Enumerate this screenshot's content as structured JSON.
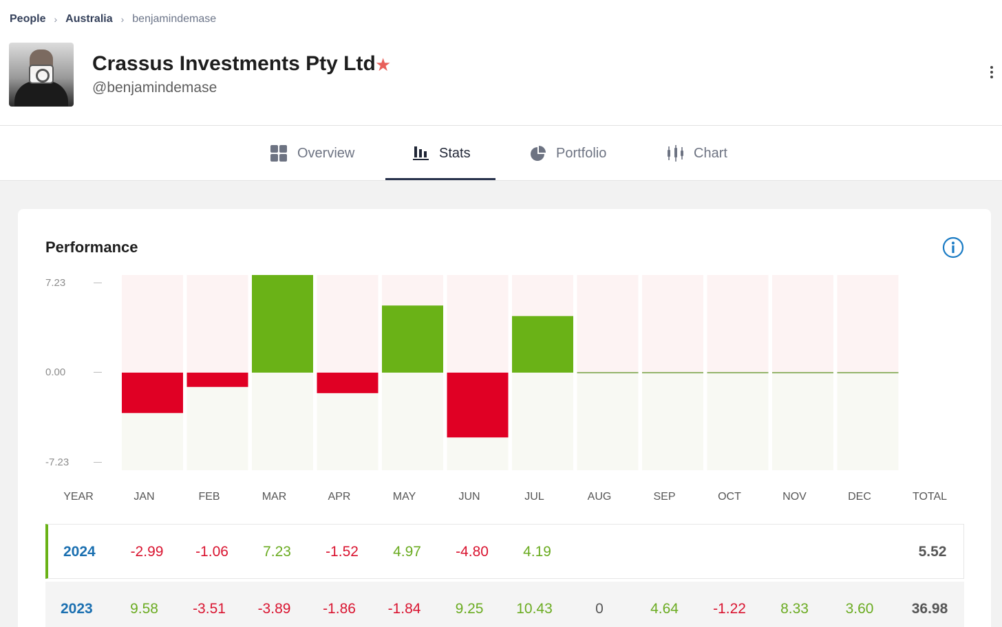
{
  "breadcrumb": [
    "People",
    "Australia",
    "benjamindemase"
  ],
  "profile": {
    "name": "Crassus Investments Pty Ltd",
    "handle": "@benjamindemase"
  },
  "tabs": [
    {
      "label": "Overview",
      "icon": "grid-icon"
    },
    {
      "label": "Stats",
      "icon": "bar-chart-icon"
    },
    {
      "label": "Portfolio",
      "icon": "pie-chart-icon"
    },
    {
      "label": "Chart",
      "icon": "candlestick-icon"
    }
  ],
  "active_tab": "Stats",
  "performance": {
    "title": "Performance",
    "year_label": "YEAR",
    "total_label": "TOTAL",
    "rows": [
      {
        "year": "2024",
        "values": [
          "-2.99",
          "-1.06",
          "7.23",
          "-1.52",
          "4.97",
          "-4.80",
          "4.19",
          "",
          "",
          "",
          "",
          ""
        ],
        "total": "5.52"
      },
      {
        "year": "2023",
        "values": [
          "9.58",
          "-3.51",
          "-3.89",
          "-1.86",
          "-1.84",
          "9.25",
          "10.43",
          "0",
          "4.64",
          "-1.22",
          "8.33",
          "3.60"
        ],
        "total": "36.98"
      }
    ]
  },
  "chart_data": {
    "type": "bar",
    "title": "Performance",
    "categories": [
      "JAN",
      "FEB",
      "MAR",
      "APR",
      "MAY",
      "JUN",
      "JUL",
      "AUG",
      "SEP",
      "OCT",
      "NOV",
      "DEC"
    ],
    "series": [
      {
        "name": "2024",
        "values": [
          -2.99,
          -1.06,
          7.23,
          -1.52,
          4.97,
          -4.8,
          4.19,
          0,
          0,
          0,
          0,
          0
        ]
      }
    ],
    "yticks": [
      "7.23",
      "0.00",
      "-7.23"
    ],
    "ylim": [
      -7.23,
      7.23
    ],
    "xlabel": "",
    "ylabel": ""
  },
  "colors": {
    "positive": "#6ab217",
    "negative": "#e00024",
    "accent": "#1a6fb0",
    "star": "#e8605a"
  }
}
